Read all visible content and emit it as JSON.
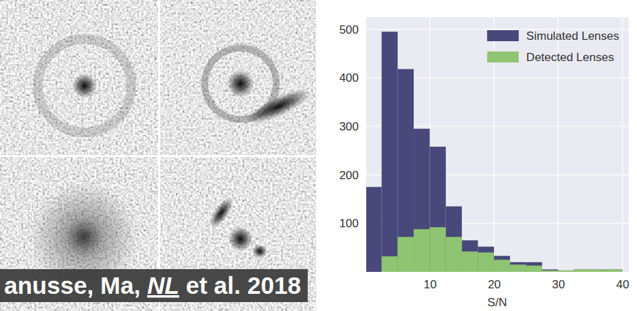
{
  "chart_data": {
    "type": "histogram",
    "bins": [
      0,
      2.5,
      5,
      7.5,
      10,
      12.5,
      15,
      17.5,
      20,
      22.5,
      25,
      27.5,
      30,
      32.5,
      35,
      37.5,
      40
    ],
    "series": [
      {
        "name": "Simulated Lenses",
        "color": "#48487a",
        "values": [
          175,
          495,
          418,
          295,
          258,
          135,
          65,
          52,
          33,
          20,
          20,
          5,
          3,
          5,
          5,
          5
        ]
      },
      {
        "name": "Detected Lenses",
        "color": "#8fc572",
        "values": [
          0,
          32,
          72,
          88,
          92,
          72,
          42,
          40,
          25,
          15,
          13,
          3,
          3,
          5,
          5,
          5
        ]
      }
    ],
    "xlim": [
      0,
      41
    ],
    "ylim": [
      0,
      525
    ],
    "xticks": [
      10,
      20,
      30,
      40
    ],
    "yticks": [
      100,
      200,
      300,
      400,
      500
    ],
    "xlabel": "S/N",
    "grid": true,
    "legend": "upper right",
    "stacked": false,
    "annotations": [
      "anusse, Ma, ",
      "NL",
      " et al. 2018"
    ]
  }
}
